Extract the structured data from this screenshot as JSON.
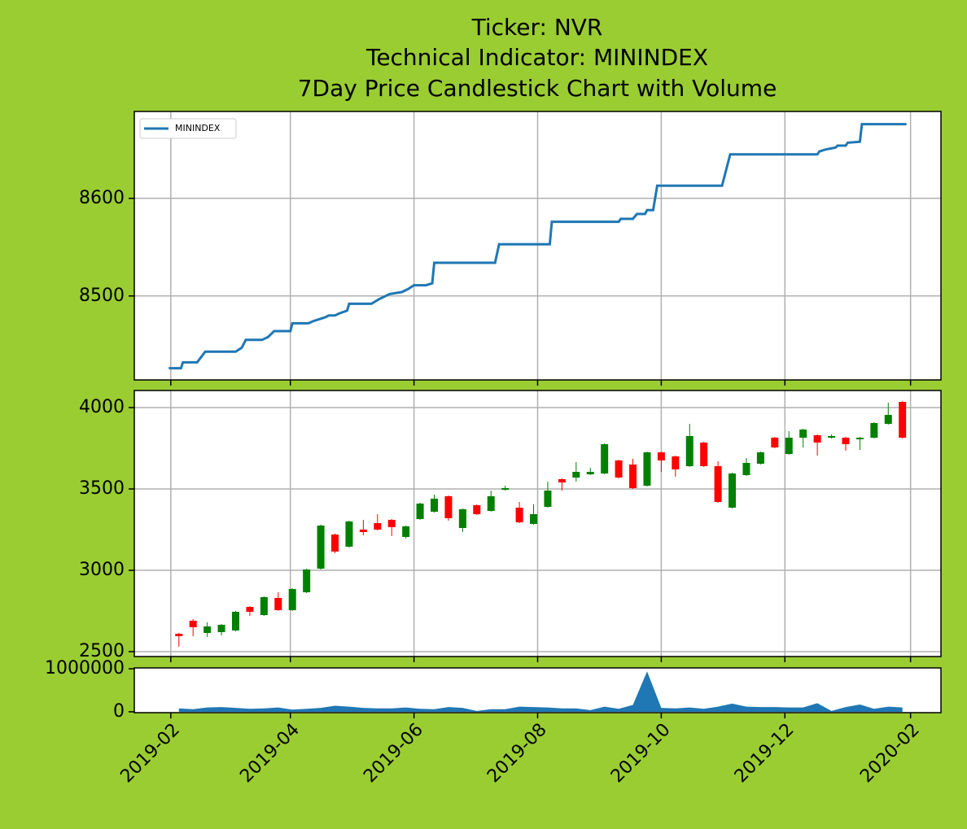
{
  "chart_data": [
    {
      "type": "line",
      "title": [
        "Ticker: NVR",
        "Technical Indicator: MININDEX",
        "7Day Price Candlestick Chart with Volume"
      ],
      "xlim": [
        "2019-01-14",
        "2020-02-16"
      ],
      "ylim": [
        8414,
        8689
      ],
      "yticks": [
        8500,
        8600
      ],
      "grid": true,
      "legend": "upper left",
      "series": [
        {
          "name": "MININDEX",
          "color": "#1f77b4",
          "x": [
            "2019-01-31",
            "2019-02-06",
            "2019-02-07",
            "2019-02-14",
            "2019-02-18",
            "2019-03-05",
            "2019-03-08",
            "2019-03-10",
            "2019-03-18",
            "2019-03-21",
            "2019-03-24",
            "2019-04-01",
            "2019-04-02",
            "2019-04-10",
            "2019-04-12",
            "2019-04-15",
            "2019-04-18",
            "2019-04-20",
            "2019-04-23",
            "2019-04-25",
            "2019-04-29",
            "2019-04-30",
            "2019-05-11",
            "2019-05-15",
            "2019-05-20",
            "2019-05-26",
            "2019-05-29",
            "2019-06-01",
            "2019-06-07",
            "2019-06-10",
            "2019-06-11",
            "2019-07-11",
            "2019-07-13",
            "2019-08-07",
            "2019-08-08",
            "2019-09-10",
            "2019-09-11",
            "2019-09-17",
            "2019-09-19",
            "2019-09-23",
            "2019-09-24",
            "2019-09-27",
            "2019-09-29",
            "2019-10-31",
            "2019-11-04",
            "2019-12-17",
            "2019-12-18",
            "2019-12-21",
            "2019-12-26",
            "2019-12-27",
            "2019-12-31",
            "2020-01-01",
            "2020-01-07",
            "2020-01-08",
            "2020-01-30"
          ],
          "values": [
            8426,
            8426,
            8432,
            8432,
            8443,
            8443,
            8447,
            8455,
            8455,
            8458,
            8464,
            8464,
            8472,
            8472,
            8474,
            8476,
            8478,
            8480,
            8480,
            8482,
            8485,
            8492,
            8492,
            8497,
            8502,
            8504,
            8507,
            8511,
            8511,
            8513,
            8534,
            8534,
            8553,
            8553,
            8576,
            8576,
            8579,
            8579,
            8584,
            8584,
            8588,
            8588,
            8613,
            8613,
            8645,
            8645,
            8648,
            8650,
            8652,
            8654,
            8654,
            8657,
            8658,
            8676,
            8676
          ]
        }
      ]
    },
    {
      "type": "candlestick",
      "xlim": [
        "2019-01-14",
        "2020-02-16"
      ],
      "ylim": [
        2470,
        4105
      ],
      "yticks": [
        2500,
        3000,
        3500,
        4000
      ],
      "grid": true,
      "up_color": "green",
      "down_color": "red",
      "x": [
        "2019-02-05",
        "2019-02-12",
        "2019-02-19",
        "2019-02-26",
        "2019-03-05",
        "2019-03-12",
        "2019-03-19",
        "2019-03-26",
        "2019-04-02",
        "2019-04-09",
        "2019-04-16",
        "2019-04-23",
        "2019-04-30",
        "2019-05-07",
        "2019-05-14",
        "2019-05-21",
        "2019-05-28",
        "2019-06-04",
        "2019-06-11",
        "2019-06-18",
        "2019-06-25",
        "2019-07-02",
        "2019-07-09",
        "2019-07-16",
        "2019-07-23",
        "2019-07-30",
        "2019-08-06",
        "2019-08-13",
        "2019-08-20",
        "2019-08-27",
        "2019-09-03",
        "2019-09-10",
        "2019-09-17",
        "2019-09-24",
        "2019-10-01",
        "2019-10-08",
        "2019-10-15",
        "2019-10-22",
        "2019-10-29",
        "2019-11-05",
        "2019-11-12",
        "2019-11-19",
        "2019-11-26",
        "2019-12-03",
        "2019-12-10",
        "2019-12-17",
        "2019-12-24",
        "2019-12-31",
        "2020-01-07",
        "2020-01-14",
        "2020-01-21",
        "2020-01-28"
      ],
      "open": [
        2610,
        2690,
        2615,
        2620,
        2630,
        2775,
        2725,
        2830,
        2755,
        2865,
        3010,
        3220,
        3145,
        3250,
        3290,
        3310,
        3205,
        3315,
        3360,
        3455,
        3260,
        3400,
        3365,
        3495,
        3385,
        3285,
        3390,
        3560,
        3570,
        3590,
        3595,
        3675,
        3650,
        3520,
        3725,
        3700,
        3640,
        3785,
        3640,
        3385,
        3585,
        3655,
        3815,
        3715,
        3815,
        3830,
        3815,
        3815,
        3805,
        3815,
        3900,
        4035
      ],
      "high": [
        2615,
        2700,
        2680,
        2670,
        2750,
        2780,
        2840,
        2865,
        2890,
        3010,
        3280,
        3225,
        3305,
        3310,
        3345,
        3315,
        3275,
        3415,
        3465,
        3460,
        3380,
        3405,
        3490,
        3520,
        3420,
        3405,
        3545,
        3565,
        3665,
        3630,
        3780,
        3680,
        3685,
        3730,
        3730,
        3705,
        3900,
        3790,
        3670,
        3600,
        3690,
        3730,
        3820,
        3855,
        3870,
        3835,
        3835,
        3820,
        3820,
        3910,
        4030,
        4040
      ],
      "low": [
        2530,
        2595,
        2590,
        2600,
        2625,
        2720,
        2720,
        2750,
        2750,
        2860,
        3005,
        3105,
        3140,
        3215,
        3245,
        3210,
        3195,
        3310,
        3355,
        3305,
        3235,
        3340,
        3360,
        3490,
        3290,
        3280,
        3385,
        3490,
        3545,
        3585,
        3590,
        3565,
        3500,
        3515,
        3605,
        3575,
        3635,
        3635,
        3415,
        3380,
        3580,
        3650,
        3750,
        3710,
        3755,
        3705,
        3810,
        3735,
        3740,
        3810,
        3895,
        3810
      ],
      "close": [
        2595,
        2650,
        2655,
        2665,
        2745,
        2745,
        2835,
        2755,
        2885,
        3005,
        3275,
        3115,
        3300,
        3235,
        3250,
        3265,
        3270,
        3410,
        3440,
        3320,
        3375,
        3345,
        3455,
        3505,
        3295,
        3345,
        3490,
        3540,
        3605,
        3605,
        3775,
        3570,
        3505,
        3725,
        3675,
        3620,
        3825,
        3640,
        3420,
        3595,
        3660,
        3725,
        3755,
        3815,
        3865,
        3785,
        3825,
        3775,
        3815,
        3905,
        3955,
        3815
      ]
    },
    {
      "type": "area",
      "xlim": [
        "2019-01-14",
        "2020-02-16"
      ],
      "ylim": [
        -20000,
        1020000
      ],
      "yticks": [
        0,
        1000000
      ],
      "grid": false,
      "color": "#1f77b4",
      "xticks": [
        "2019-02",
        "2019-04",
        "2019-06",
        "2019-08",
        "2019-10",
        "2019-12",
        "2020-02"
      ],
      "x": [
        "2019-02-05",
        "2019-02-12",
        "2019-02-19",
        "2019-02-26",
        "2019-03-05",
        "2019-03-12",
        "2019-03-19",
        "2019-03-26",
        "2019-04-02",
        "2019-04-09",
        "2019-04-16",
        "2019-04-23",
        "2019-04-30",
        "2019-05-07",
        "2019-05-14",
        "2019-05-21",
        "2019-05-28",
        "2019-06-04",
        "2019-06-11",
        "2019-06-18",
        "2019-06-25",
        "2019-07-02",
        "2019-07-09",
        "2019-07-16",
        "2019-07-23",
        "2019-07-30",
        "2019-08-06",
        "2019-08-13",
        "2019-08-20",
        "2019-08-27",
        "2019-09-03",
        "2019-09-10",
        "2019-09-17",
        "2019-09-24",
        "2019-10-01",
        "2019-10-08",
        "2019-10-15",
        "2019-10-22",
        "2019-10-29",
        "2019-11-05",
        "2019-11-12",
        "2019-11-19",
        "2019-11-26",
        "2019-12-03",
        "2019-12-10",
        "2019-12-17",
        "2019-12-24",
        "2019-12-31",
        "2020-01-07",
        "2020-01-14",
        "2020-01-21",
        "2020-01-28"
      ],
      "values": [
        80000,
        60000,
        100000,
        110000,
        90000,
        70000,
        80000,
        100000,
        50000,
        70000,
        90000,
        140000,
        120000,
        90000,
        80000,
        80000,
        100000,
        70000,
        60000,
        110000,
        90000,
        20000,
        60000,
        60000,
        120000,
        110000,
        100000,
        80000,
        80000,
        40000,
        120000,
        70000,
        160000,
        940000,
        90000,
        80000,
        100000,
        70000,
        120000,
        190000,
        120000,
        110000,
        110000,
        100000,
        100000,
        200000,
        20000,
        110000,
        170000,
        70000,
        120000,
        100000
      ]
    }
  ]
}
